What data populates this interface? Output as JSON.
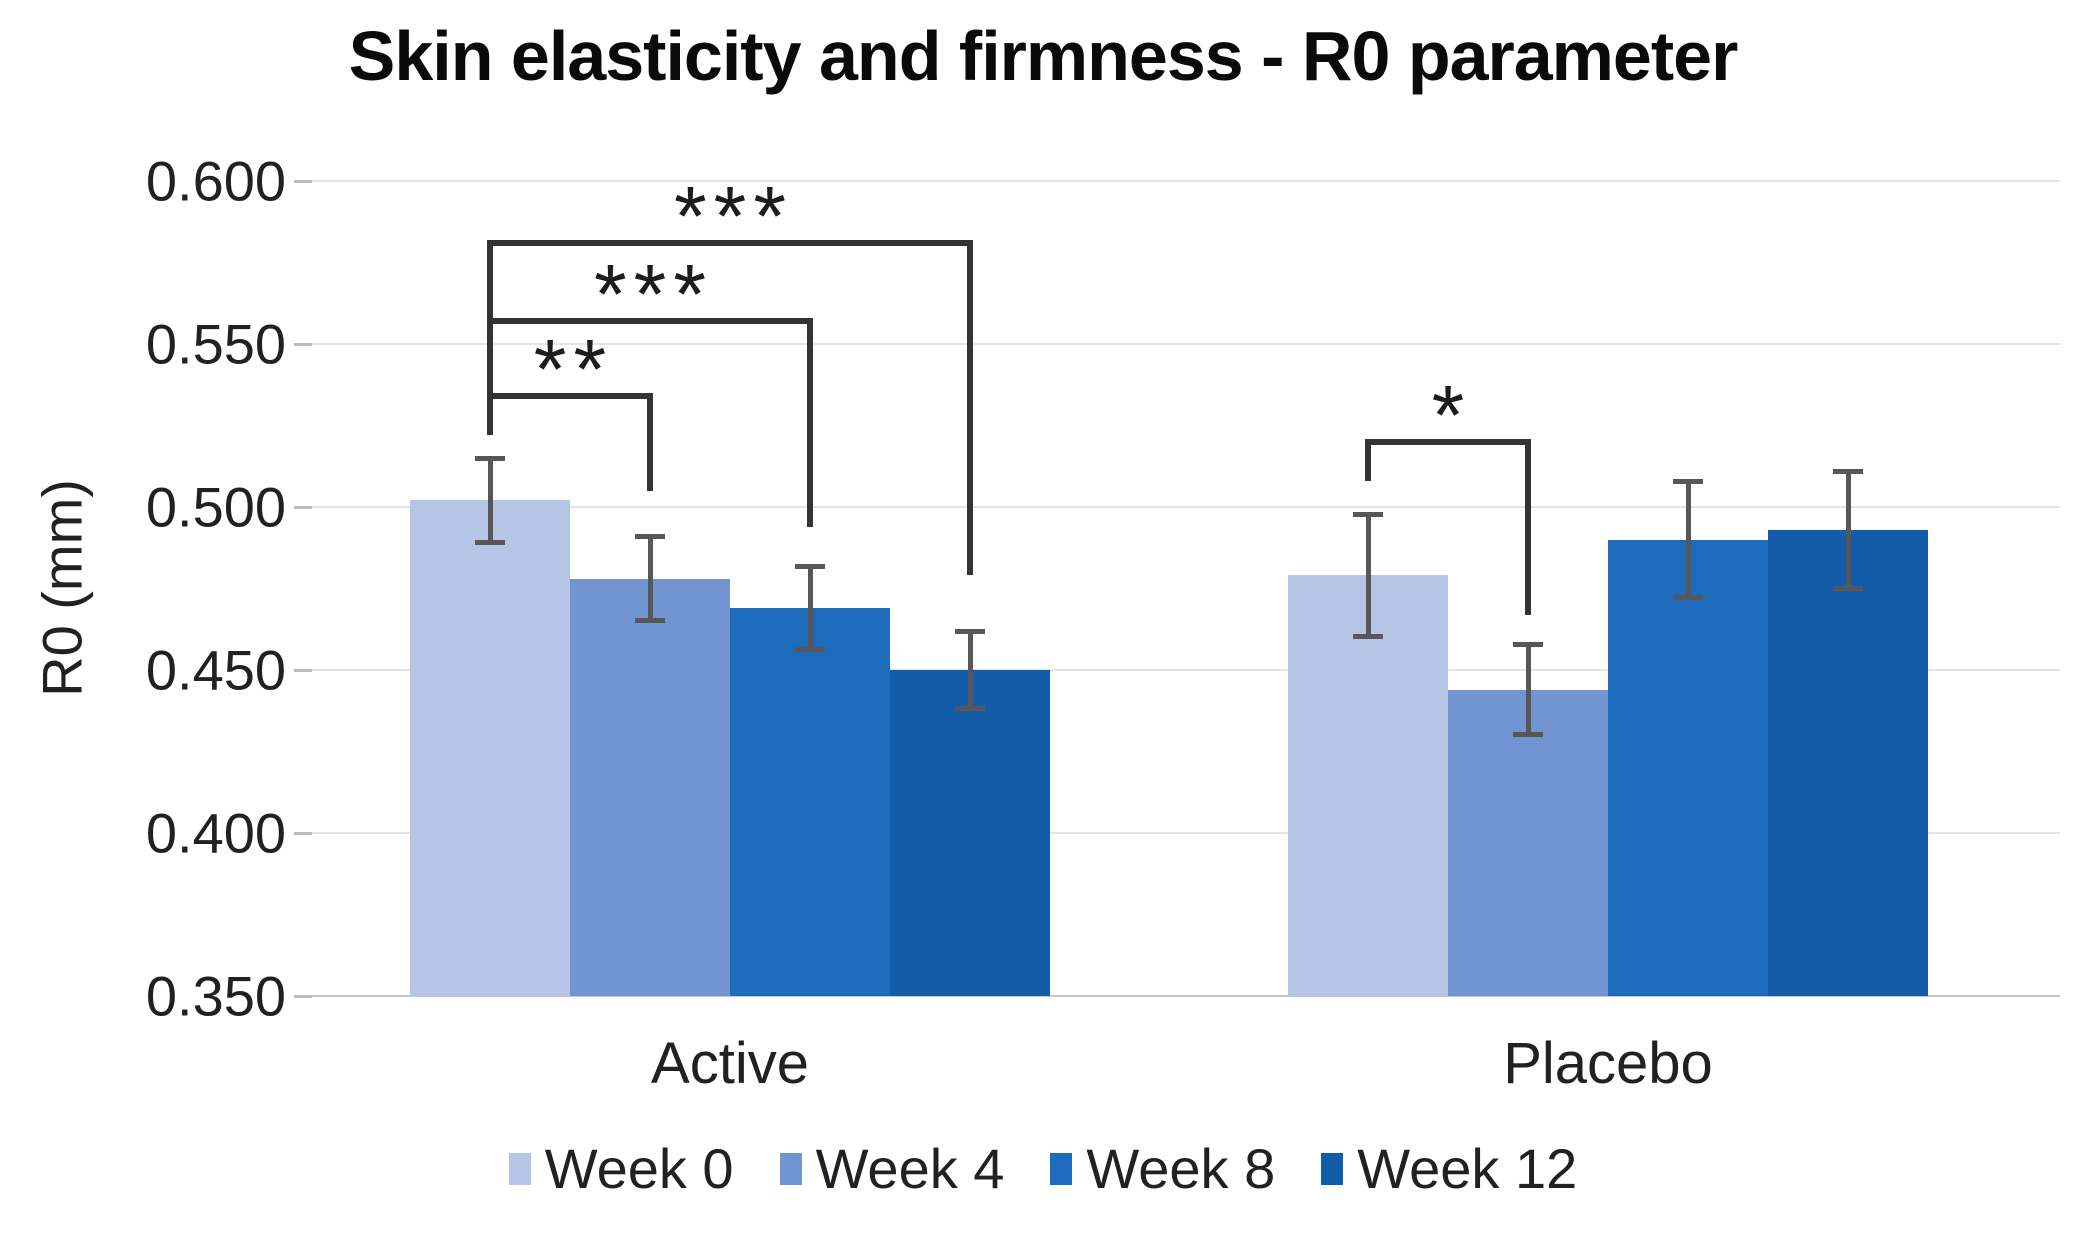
{
  "page": {
    "background": "#ffffff"
  },
  "chart_data": {
    "type": "bar",
    "title": "Skin elasticity and firmness - R0 parameter",
    "ylabel": "R0 (mm)",
    "xlabel": "",
    "ylim": [
      0.35,
      0.6
    ],
    "ytick_step": 0.05,
    "yticks": [
      0.6,
      0.55,
      0.5,
      0.45,
      0.4,
      0.35
    ],
    "ytick_labels": [
      "0.600",
      "0.550",
      "0.500",
      "0.450",
      "0.400",
      "0.350"
    ],
    "grid": true,
    "legend_position": "bottom",
    "categories": [
      "Active",
      "Placebo"
    ],
    "series": [
      {
        "name": "Week 0",
        "color": "#b6c5e6",
        "values": [
          0.502,
          0.479
        ],
        "errors": [
          0.013,
          0.019
        ]
      },
      {
        "name": "Week 4",
        "color": "#7295d2",
        "values": [
          0.478,
          0.444
        ],
        "errors": [
          0.013,
          0.014
        ]
      },
      {
        "name": "Week 8",
        "color": "#1f6bbb",
        "values": [
          0.469,
          0.49
        ],
        "errors": [
          0.013,
          0.018
        ]
      },
      {
        "name": "Week 12",
        "color": "#135ca9",
        "values": [
          0.45,
          0.493
        ],
        "errors": [
          0.012,
          0.018
        ]
      }
    ],
    "significance_brackets": [
      {
        "category": "Active",
        "from": "Week 0",
        "to": "Week 4",
        "label": "**",
        "top": 0.535,
        "left_end": 0.522,
        "right_end": 0.505
      },
      {
        "category": "Active",
        "from": "Week 0",
        "to": "Week 8",
        "label": "***",
        "top": 0.558,
        "left_end": 0.522,
        "right_end": 0.494
      },
      {
        "category": "Active",
        "from": "Week 0",
        "to": "Week 12",
        "label": "***",
        "top": 0.582,
        "left_end": 0.522,
        "right_end": 0.479
      },
      {
        "category": "Placebo",
        "from": "Week 0",
        "to": "Week 4",
        "label": "*",
        "top": 0.521,
        "left_end": 0.508,
        "right_end": 0.467
      }
    ],
    "colors": {
      "background": "#ffffff",
      "gridline": "#e2e5e7",
      "baseline": "#c4c7c9",
      "tick_mark": "#b9bcbe",
      "error_bar": "#575757",
      "bracket": "#333333",
      "axis_text": "#212121",
      "title_text": "#0a0a0a"
    }
  }
}
